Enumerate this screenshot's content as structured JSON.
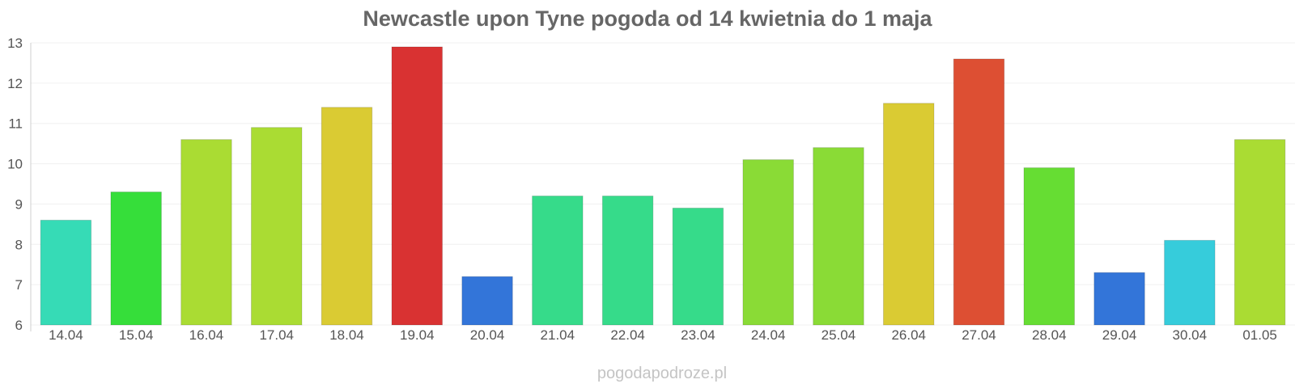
{
  "chart_data": {
    "type": "bar",
    "title": "Newcastle upon Tyne pogoda od 14 kwietnia do 1 maja",
    "categories": [
      "14.04",
      "15.04",
      "16.04",
      "17.04",
      "18.04",
      "19.04",
      "20.04",
      "21.04",
      "22.04",
      "23.04",
      "24.04",
      "25.04",
      "26.04",
      "27.04",
      "28.04",
      "29.04",
      "30.04",
      "01.05"
    ],
    "values": [
      8.6,
      9.3,
      10.6,
      10.9,
      11.4,
      12.9,
      7.2,
      9.2,
      9.2,
      8.9,
      10.1,
      10.4,
      11.5,
      12.6,
      9.9,
      7.3,
      8.1,
      10.6
    ],
    "colors": [
      "#36dbb6",
      "#36de3a",
      "#aadc33",
      "#aadc33",
      "#dacb33",
      "#d93232",
      "#3375d9",
      "#36db8a",
      "#36db8a",
      "#36db8a",
      "#8adb36",
      "#8adb36",
      "#dacb33",
      "#dd4f33",
      "#66dd33",
      "#3375d9",
      "#36ccdb",
      "#aadc33"
    ],
    "ylim": [
      6,
      13
    ],
    "yticks": [
      6,
      7,
      8,
      9,
      10,
      11,
      12,
      13
    ],
    "xlabel": "",
    "ylabel": "",
    "grid": true,
    "legend": "none"
  },
  "watermark": "pogodapodroze.pl"
}
